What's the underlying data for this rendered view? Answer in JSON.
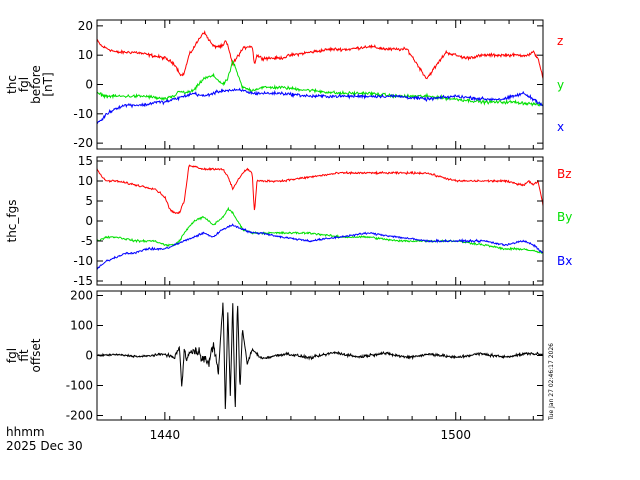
{
  "footer": {
    "time_label": "hhmm",
    "date_label": "2025 Dec 30"
  },
  "timestamp": "Tue Jan 27 02:46:17 2026",
  "colors": {
    "red": "#ff0000",
    "green": "#00e000",
    "blue": "#0000ff",
    "black": "#000000",
    "axis": "#000000"
  },
  "chart_data": [
    {
      "type": "line",
      "ylabel": [
        "thc",
        "fgl",
        "before",
        "[nT]"
      ],
      "ylim": [
        -22,
        22
      ],
      "yticks": [
        20,
        10,
        0,
        -10,
        -20
      ],
      "xlim": [
        1426,
        1518
      ],
      "xticks": [
        1440,
        1500
      ],
      "xtick_labels": [
        "1440",
        "1500"
      ],
      "series": [
        {
          "name": "z",
          "color": "#ff0000",
          "x": [
            1426,
            1427,
            1430,
            1434,
            1437,
            1440,
            1442,
            1443,
            1443.5,
            1444,
            1445,
            1448,
            1450,
            1452,
            1452.5,
            1453,
            1454,
            1456,
            1457,
            1458,
            1458.5,
            1459,
            1460,
            1464,
            1466,
            1470,
            1474,
            1478,
            1482,
            1486,
            1490,
            1494,
            1498,
            1502,
            1506,
            1510,
            1514,
            1515,
            1516,
            1517,
            1518
          ],
          "values": [
            15,
            13,
            11,
            11,
            10,
            9,
            7,
            4,
            3,
            4,
            10,
            18,
            13,
            13,
            15,
            13,
            7,
            12,
            13,
            13,
            7,
            10,
            9,
            9,
            10,
            11,
            12,
            12,
            13,
            12,
            12,
            2,
            11,
            9,
            10,
            10,
            10,
            10,
            11,
            9,
            2
          ]
        },
        {
          "name": "y",
          "color": "#00e000",
          "x": [
            1426,
            1428,
            1432,
            1436,
            1440,
            1442,
            1443,
            1444,
            1446,
            1448,
            1450,
            1452,
            1453,
            1454,
            1456,
            1458,
            1460,
            1464,
            1470,
            1476,
            1482,
            1488,
            1494,
            1500,
            1506,
            1512,
            1518
          ],
          "values": [
            -3,
            -4,
            -4,
            -4,
            -5,
            -4,
            -2,
            -3,
            -2,
            2,
            3,
            0,
            2,
            8,
            -1,
            -2,
            -1,
            -1,
            -2,
            -3,
            -3,
            -4,
            -4,
            -5,
            -6,
            -6,
            -7
          ]
        },
        {
          "name": "x",
          "color": "#0000ff",
          "x": [
            1426,
            1427,
            1428,
            1430,
            1432,
            1434,
            1436,
            1438,
            1440,
            1442,
            1444,
            1446,
            1448,
            1450,
            1452,
            1454,
            1456,
            1458,
            1460,
            1464,
            1470,
            1476,
            1482,
            1488,
            1494,
            1500,
            1506,
            1510,
            1514,
            1518
          ],
          "values": [
            -13,
            -12,
            -10,
            -8,
            -7,
            -7,
            -7,
            -6,
            -6,
            -5,
            -4,
            -3,
            -4,
            -3,
            -2,
            -2,
            -2,
            -3,
            -3,
            -3,
            -4,
            -4,
            -4,
            -4,
            -5,
            -4,
            -5,
            -5,
            -3,
            -7
          ]
        }
      ]
    },
    {
      "type": "line",
      "ylabel": [
        "thc_fgs"
      ],
      "ylim": [
        -16,
        16
      ],
      "yticks": [
        15,
        10,
        5,
        0,
        -5,
        -10,
        -15
      ],
      "xlim": [
        1426,
        1518
      ],
      "xticks": [
        1440,
        1500
      ],
      "xtick_labels": [
        "1440",
        "1500"
      ],
      "series": [
        {
          "name": "Bz",
          "color": "#ff0000",
          "x": [
            1426,
            1427,
            1428,
            1430,
            1434,
            1438,
            1440,
            1441,
            1442,
            1443,
            1444,
            1445,
            1448,
            1450,
            1452,
            1453,
            1454,
            1456,
            1457,
            1458,
            1458.5,
            1459,
            1460,
            1464,
            1470,
            1476,
            1482,
            1488,
            1494,
            1500,
            1506,
            1510,
            1514,
            1515,
            1516,
            1517,
            1518
          ],
          "values": [
            13,
            11,
            10,
            10,
            9,
            8,
            6,
            3,
            2,
            2,
            5,
            14,
            13,
            13,
            13,
            11,
            8,
            12,
            13,
            12,
            2,
            10,
            10,
            10,
            11,
            12,
            12,
            12,
            12,
            10,
            10,
            10,
            9,
            10,
            9,
            10,
            4
          ]
        },
        {
          "name": "By",
          "color": "#00e000",
          "x": [
            1426,
            1428,
            1430,
            1434,
            1438,
            1440,
            1442,
            1443,
            1444,
            1446,
            1448,
            1450,
            1452,
            1453,
            1454,
            1456,
            1458,
            1460,
            1464,
            1470,
            1476,
            1482,
            1488,
            1494,
            1500,
            1506,
            1510,
            1514,
            1518
          ],
          "values": [
            -5,
            -4,
            -4,
            -5,
            -5,
            -6,
            -6,
            -5,
            -3,
            0,
            1,
            -1,
            1,
            3,
            2,
            -2,
            -3,
            -3,
            -3,
            -3,
            -4,
            -4,
            -5,
            -5,
            -5,
            -6,
            -7,
            -7,
            -8
          ]
        },
        {
          "name": "Bx",
          "color": "#0000ff",
          "x": [
            1426,
            1427,
            1428,
            1430,
            1432,
            1434,
            1436,
            1438,
            1440,
            1442,
            1444,
            1446,
            1448,
            1450,
            1452,
            1454,
            1456,
            1458,
            1460,
            1464,
            1470,
            1476,
            1482,
            1488,
            1494,
            1500,
            1506,
            1510,
            1514,
            1516,
            1518
          ],
          "values": [
            -12,
            -11,
            -10,
            -9,
            -8,
            -8,
            -7,
            -7,
            -7,
            -6,
            -5,
            -4,
            -3,
            -4,
            -2,
            -1,
            -2,
            -3,
            -3,
            -4,
            -5,
            -4,
            -3,
            -4,
            -5,
            -5,
            -5,
            -6,
            -5,
            -6,
            -8
          ]
        }
      ]
    },
    {
      "type": "line",
      "ylabel": [
        "fgl",
        "fit",
        "offset"
      ],
      "ylim": [
        -215,
        215
      ],
      "yticks": [
        200,
        100,
        0,
        -100,
        -200
      ],
      "xlim": [
        1426,
        1518
      ],
      "xticks": [
        1440,
        1500
      ],
      "xtick_labels": [
        "1440",
        "1500"
      ],
      "series": [
        {
          "name": "",
          "color": "#000000",
          "x": [
            1426,
            1430,
            1435,
            1440,
            1442,
            1443,
            1443.5,
            1444,
            1444.5,
            1445,
            1447,
            1449,
            1450,
            1451,
            1452,
            1452.5,
            1453,
            1453.5,
            1454,
            1454.5,
            1455,
            1455.5,
            1456,
            1457,
            1458,
            1460,
            1465,
            1470,
            1475,
            1480,
            1485,
            1490,
            1495,
            1500,
            1505,
            1510,
            1515,
            1518
          ],
          "values": [
            0,
            3,
            -4,
            5,
            -8,
            30,
            -110,
            20,
            -15,
            8,
            15,
            -30,
            40,
            -60,
            180,
            -190,
            150,
            -140,
            180,
            -190,
            190,
            -120,
            90,
            -30,
            20,
            -10,
            6,
            -8,
            10,
            -5,
            8,
            -6,
            5,
            -7,
            6,
            -5,
            7,
            3
          ],
          "noise": [
            4,
            4,
            5,
            6,
            10,
            12,
            14,
            14,
            14,
            18,
            30,
            30,
            25,
            20,
            20,
            12,
            10,
            10,
            8,
            8,
            8,
            8,
            7,
            7,
            7,
            7,
            7,
            7,
            7,
            7,
            7,
            7,
            7,
            7,
            7,
            7,
            7,
            7
          ]
        }
      ]
    }
  ]
}
